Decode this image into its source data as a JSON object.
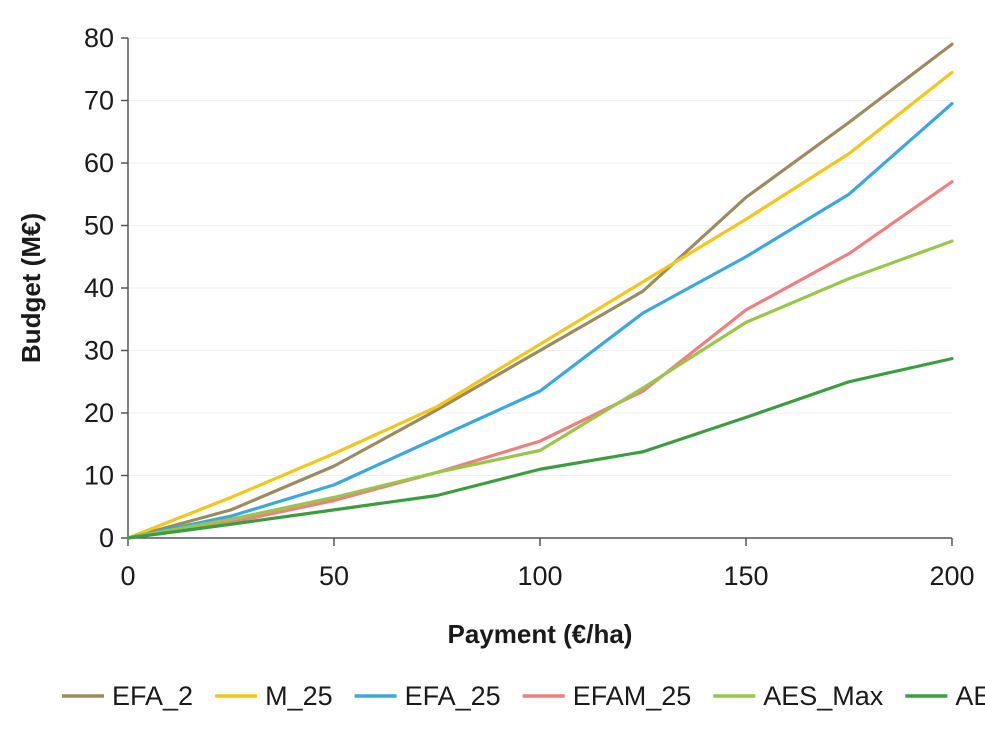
{
  "chart_data": {
    "type": "line",
    "xlabel": "Payment (€/ha)",
    "ylabel": "Budget (M€)",
    "xlim": [
      0,
      200
    ],
    "ylim": [
      0,
      80
    ],
    "x_ticks": [
      0,
      50,
      100,
      150,
      200
    ],
    "y_ticks": [
      0,
      10,
      20,
      30,
      40,
      50,
      60,
      70,
      80
    ],
    "grid": "horizontal",
    "legend_position": "bottom",
    "x": [
      0,
      25,
      50,
      75,
      100,
      125,
      150,
      175,
      200
    ],
    "series": [
      {
        "name": "EFA_2",
        "color": "#9b8b5f",
        "values": [
          0,
          4.5,
          11.5,
          20.5,
          30,
          39.5,
          54.5,
          66.5,
          79
        ]
      },
      {
        "name": "M_25",
        "color": "#f5c518",
        "values": [
          0,
          6.5,
          13.5,
          21,
          31,
          41,
          51,
          61.5,
          74.5
        ]
      },
      {
        "name": "EFA_25",
        "color": "#3aa8e0",
        "values": [
          0,
          3.5,
          8.5,
          16,
          23.5,
          36,
          45,
          55,
          69.5
        ]
      },
      {
        "name": "EFAM_25",
        "color": "#ef7f7f",
        "values": [
          0,
          2.5,
          6,
          10.5,
          15.5,
          23.5,
          36.5,
          45.5,
          57
        ]
      },
      {
        "name": "AES_Max",
        "color": "#99c648",
        "values": [
          0,
          3,
          6.5,
          10.5,
          14,
          24,
          34.5,
          41.5,
          47.5
        ]
      },
      {
        "name": "AES_MaxC",
        "color": "#3a9e40",
        "values": [
          0,
          2.2,
          4.5,
          6.8,
          11,
          13.8,
          19.3,
          25,
          28.7
        ]
      }
    ]
  }
}
